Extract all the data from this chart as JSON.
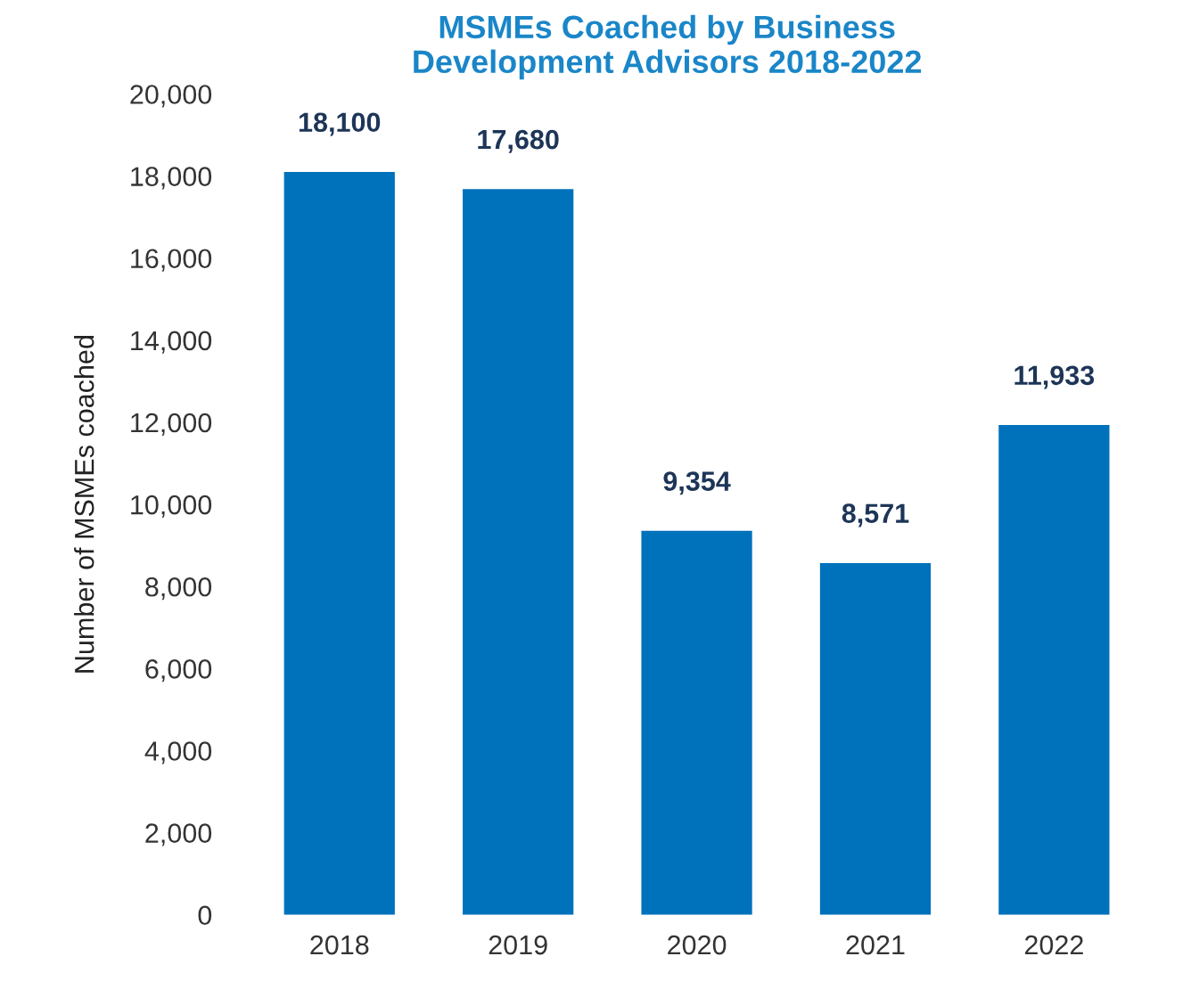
{
  "chart_data": {
    "type": "bar",
    "title": "MSMEs Coached by Business\nDevelopment Advisors 2018-2022",
    "ylabel": "Number of MSMEs coached",
    "categories": [
      "2018",
      "2019",
      "2020",
      "2021",
      "2022"
    ],
    "values": [
      18100,
      17680,
      9354,
      8571,
      11933
    ],
    "value_labels": [
      "18,100",
      "17,680",
      "9,354",
      "8,571",
      "11,933"
    ],
    "color": "#0071bb",
    "ylim": [
      0,
      20000
    ],
    "yticks": [
      {
        "value": 0,
        "label": "0"
      },
      {
        "value": 2000,
        "label": "2,000"
      },
      {
        "value": 4000,
        "label": "4,000"
      },
      {
        "value": 6000,
        "label": "6,000"
      },
      {
        "value": 8000,
        "label": "8,000"
      },
      {
        "value": 10000,
        "label": "10,000"
      },
      {
        "value": 12000,
        "label": "12,000"
      },
      {
        "value": 14000,
        "label": "14,000"
      },
      {
        "value": 16000,
        "label": "16,000"
      },
      {
        "value": 18000,
        "label": "18,000"
      },
      {
        "value": 20000,
        "label": "20,000"
      }
    ],
    "grid": false
  }
}
